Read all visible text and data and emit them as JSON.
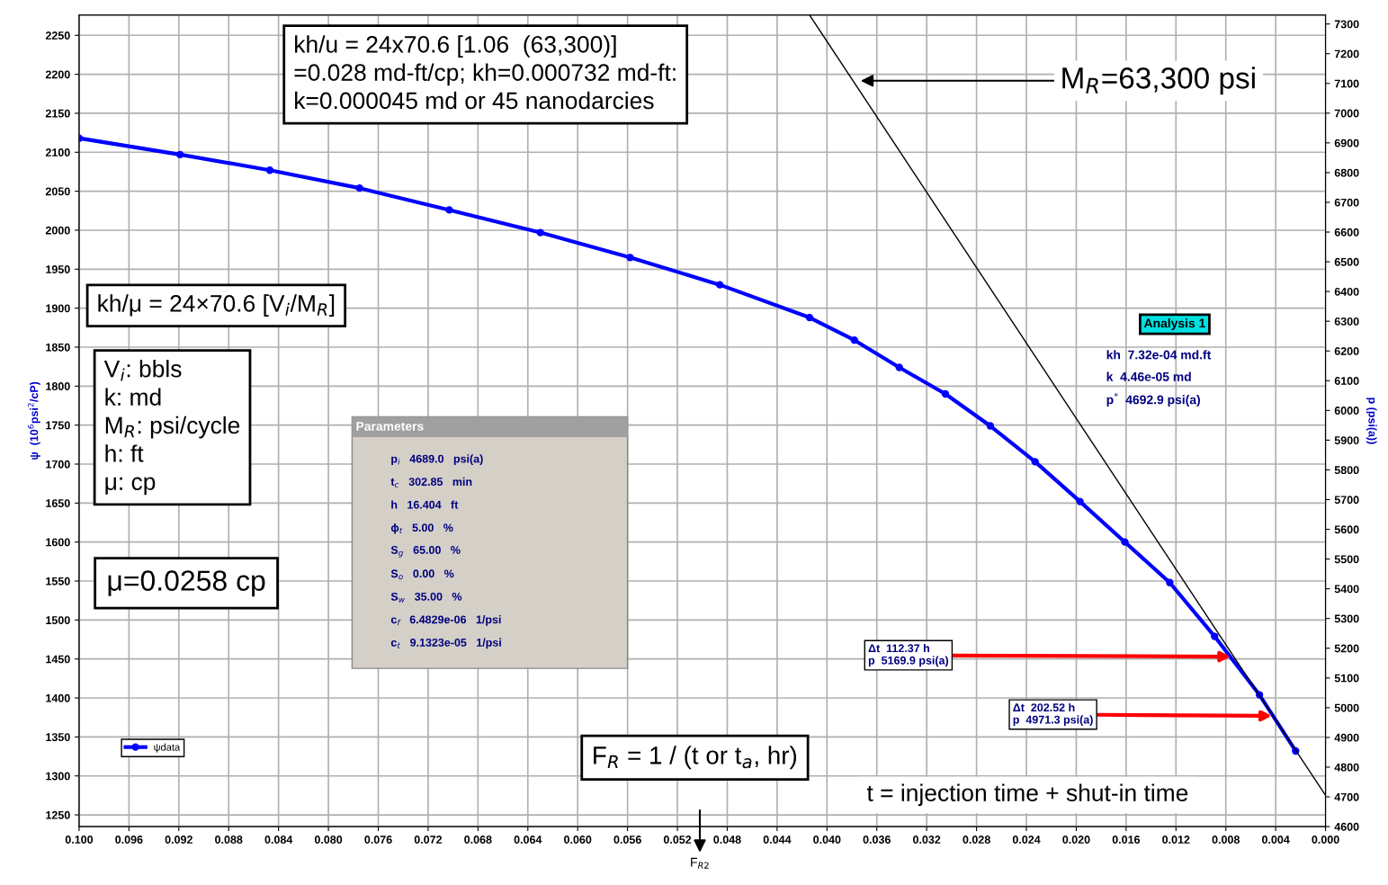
{
  "chart_data": {
    "type": "line",
    "xlabel": null,
    "ylabel": "ψ  (10$^{6}$psi$^{2}$/cP)",
    "y2label": "p (psi(a))",
    "xlim": [
      0.1,
      0.0
    ],
    "ylim": [
      1235,
      2276
    ],
    "y2lim": [
      4600,
      7330
    ],
    "xticks": [
      {
        "value": 0.1,
        "label": "0.100"
      },
      {
        "value": 0.096,
        "label": "0.096"
      },
      {
        "value": 0.092,
        "label": "0.092"
      },
      {
        "value": 0.088,
        "label": "0.088"
      },
      {
        "value": 0.084,
        "label": "0.084"
      },
      {
        "value": 0.08,
        "label": "0.080"
      },
      {
        "value": 0.076,
        "label": "0.076"
      },
      {
        "value": 0.072,
        "label": "0.072"
      },
      {
        "value": 0.068,
        "label": "0.068"
      },
      {
        "value": 0.064,
        "label": "0.064"
      },
      {
        "value": 0.06,
        "label": "0.060"
      },
      {
        "value": 0.056,
        "label": "0.056"
      },
      {
        "value": 0.052,
        "label": "0.052"
      },
      {
        "value": 0.048,
        "label": "0.048"
      },
      {
        "value": 0.044,
        "label": "0.044"
      },
      {
        "value": 0.04,
        "label": "0.040"
      },
      {
        "value": 0.036,
        "label": "0.036"
      },
      {
        "value": 0.032,
        "label": "0.032"
      },
      {
        "value": 0.028,
        "label": "0.028"
      },
      {
        "value": 0.024,
        "label": "0.024"
      },
      {
        "value": 0.02,
        "label": "0.020"
      },
      {
        "value": 0.016,
        "label": "0.016"
      },
      {
        "value": 0.012,
        "label": "0.012"
      },
      {
        "value": 0.008,
        "label": "0.008"
      },
      {
        "value": 0.004,
        "label": "0.004"
      },
      {
        "value": 0.0,
        "label": "0.000"
      }
    ],
    "yticks": [
      1250,
      1300,
      1350,
      1400,
      1450,
      1500,
      1550,
      1600,
      1650,
      1700,
      1750,
      1800,
      1850,
      1900,
      1950,
      2000,
      2050,
      2100,
      2150,
      2200,
      2250
    ],
    "y2ticks": [
      4600,
      4700,
      4800,
      4900,
      5000,
      5100,
      5200,
      5300,
      5400,
      5500,
      5600,
      5700,
      5800,
      5900,
      6000,
      6100,
      6200,
      6300,
      6400,
      6500,
      6600,
      6700,
      6800,
      6900,
      7000,
      7100,
      7200,
      7300
    ],
    "grid": true,
    "legend": "bottom left",
    "series": [
      {
        "name": "ψdata",
        "color": "#0000ff",
        "marker": "circle",
        "x": [
          0.1,
          0.0919,
          0.0847,
          0.0775,
          0.0703,
          0.063,
          0.0558,
          0.0486,
          0.0414,
          0.0378,
          0.0342,
          0.0305,
          0.0269,
          0.0233,
          0.0197,
          0.0161,
          0.0125,
          0.0089,
          0.0053,
          0.0024
        ],
        "values": [
          2118,
          2097,
          2077,
          2054,
          2026,
          1997,
          1965,
          1930,
          1888,
          1859,
          1824,
          1790,
          1749,
          1703,
          1652,
          1600,
          1548,
          1479,
          1404,
          1332
        ]
      },
      {
        "color": "#000000",
        "marker": "none",
        "x": [
          0.0414,
          0.0
        ],
        "values": [
          2276,
          1275
        ]
      }
    ],
    "annotations": [
      "kh/u = 24x70.6 [1.06  (63,300)]\n=0.028 md-ft/cp; kh=0.000732 md-ft:\nk=0.000045 md or 45 nanodarcies",
      "M$_{R}$=63,300 psi",
      "kh/μ = 24×70.6 [V$_{i}$/M$_{R}$]",
      "V$_{i}$: bbls\nk: md\nM$_{R}$: psi/cycle\nh: ft\nμ: cp",
      "μ=0.0258 cp",
      "Parameters",
      "p$_{i}$   4689.0   psi(a)",
      "t$_{c}$   302.85   min",
      "h   16.404   ft",
      "ϕ$_{t}$   5.00   %",
      "S$_{g}$   65.00   %",
      "S$_{o}$   0.00   %",
      "S$_{w}$   35.00   %",
      "c$_{f}$   6.4829e-06   1/psi",
      "c$_{t}$   9.1323e-05   1/psi",
      "Analysis 1",
      "kh  7.32e-04 md.ft",
      "k  4.46e-05 md",
      "p$^{*}$  4692.9 psi(a)",
      {
        "text": "Δt  112.37 h\np  5169.9 psi(a)",
        "x": 0.0076,
        "y": 1453
      },
      {
        "text": "Δt  202.52 h\np  4971.3 psi(a)",
        "x": 0.0043,
        "y": 1377
      },
      "F$_{R}$ = 1 / (t or t$_{a}$, hr)",
      "t = injection time + shut-in time",
      "F$_{R2}$"
    ]
  }
}
